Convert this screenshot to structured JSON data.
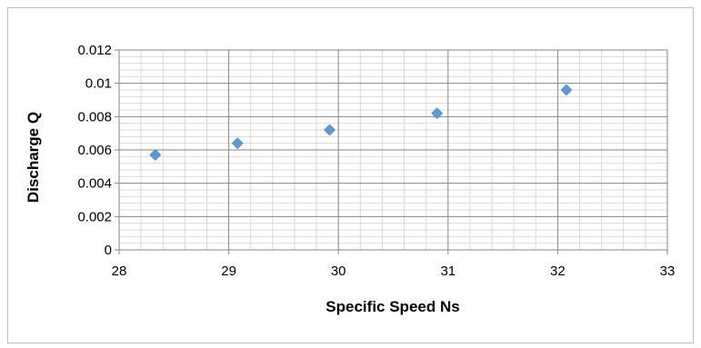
{
  "chart_data": {
    "type": "scatter",
    "title": "",
    "xlabel": "Specific Speed Ns",
    "ylabel": "Discharge Q",
    "xlim": [
      28,
      33
    ],
    "ylim": [
      0,
      0.012
    ],
    "x_ticks": [
      "28",
      "29",
      "30",
      "31",
      "32",
      "33"
    ],
    "y_ticks": [
      "0",
      "0.002",
      "0.004",
      "0.006",
      "0.008",
      "0.01",
      "0.012"
    ],
    "grid": true,
    "legend": "none",
    "marker": "diamond",
    "series": [
      {
        "points": [
          {
            "x": 28.33,
            "y": 0.0057
          },
          {
            "x": 29.08,
            "y": 0.0064
          },
          {
            "x": 29.92,
            "y": 0.0072
          },
          {
            "x": 30.9,
            "y": 0.0082
          },
          {
            "x": 32.08,
            "y": 0.0096
          }
        ]
      }
    ],
    "colors": {
      "marker": "#5b9bd5",
      "grid_major": "#868686",
      "grid_minor": "#d9d9d9",
      "axis": "#868686"
    }
  }
}
